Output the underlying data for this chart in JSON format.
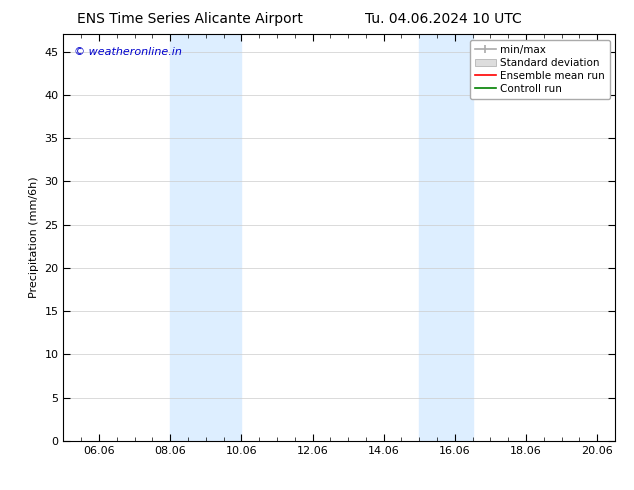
{
  "title_left": "ENS Time Series Alicante Airport",
  "title_right": "Tu. 04.06.2024 10 UTC",
  "ylabel": "Precipitation (mm/6h)",
  "watermark": "© weatheronline.in",
  "watermark_color": "#0000cc",
  "xmin": 5.0,
  "xmax": 20.5,
  "ymin": 0,
  "ymax": 47,
  "yticks": [
    0,
    5,
    10,
    15,
    20,
    25,
    30,
    35,
    40,
    45
  ],
  "xtick_labels": [
    "06.06",
    "08.06",
    "10.06",
    "12.06",
    "14.06",
    "16.06",
    "18.06",
    "20.06"
  ],
  "xtick_positions": [
    6,
    8,
    10,
    12,
    14,
    16,
    18,
    20
  ],
  "shaded_bands": [
    {
      "xmin": 8.0,
      "xmax": 10.0,
      "color": "#ddeeff"
    },
    {
      "xmin": 15.0,
      "xmax": 16.5,
      "color": "#ddeeff"
    }
  ],
  "background_color": "#ffffff",
  "plot_background": "#ffffff",
  "grid_color": "#cccccc",
  "legend_items": [
    {
      "label": "min/max",
      "color": "#aaaaaa"
    },
    {
      "label": "Standard deviation",
      "color": "#cccccc"
    },
    {
      "label": "Ensemble mean run",
      "color": "#ff0000"
    },
    {
      "label": "Controll run",
      "color": "#008000"
    }
  ],
  "title_fontsize": 10,
  "tick_fontsize": 8,
  "legend_fontsize": 7.5,
  "ylabel_fontsize": 8,
  "watermark_fontsize": 8
}
